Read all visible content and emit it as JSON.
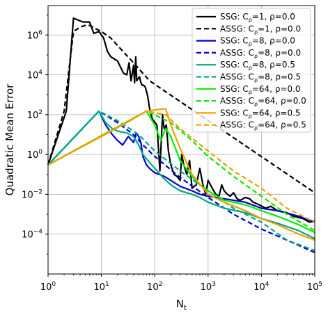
{
  "chart_data": {
    "type": "line",
    "xscale": "log",
    "yscale": "log",
    "xlim": [
      1,
      100000
    ],
    "ylim": [
      1e-06,
      30000000
    ],
    "xlabel": "N",
    "xlabel_sub": "t",
    "ylabel": "Quadratic Mean Error",
    "grid": true,
    "legend_position": "top-right",
    "x_ticks": [
      {
        "base": "10",
        "exp": "0"
      },
      {
        "base": "10",
        "exp": "1"
      },
      {
        "base": "10",
        "exp": "2"
      },
      {
        "base": "10",
        "exp": "3"
      },
      {
        "base": "10",
        "exp": "4"
      },
      {
        "base": "10",
        "exp": "5"
      }
    ],
    "y_ticks": [
      {
        "base": "10",
        "exp": "−4"
      },
      {
        "base": "10",
        "exp": "−2"
      },
      {
        "base": "10",
        "exp": "0"
      },
      {
        "base": "10",
        "exp": "2"
      },
      {
        "base": "10",
        "exp": "4"
      },
      {
        "base": "10",
        "exp": "6"
      }
    ],
    "series": [
      {
        "name": "SSG: C_ρ=1, ρ=0.0",
        "label_prefix": "SSG: C",
        "label_sub": "ρ",
        "label_suffix": "=1, ρ=0.0",
        "color": "#000000",
        "dash": "solid",
        "x": [
          1,
          2.2,
          3,
          4.5,
          6,
          7.2,
          9,
          11,
          13,
          15,
          20,
          26,
          30,
          33,
          36,
          38,
          40,
          42,
          44,
          46,
          48,
          52,
          55,
          58,
          62,
          66,
          70,
          74,
          80,
          90,
          110,
          125,
          140,
          150,
          165,
          180,
          200,
          230,
          260,
          300,
          320,
          350,
          400,
          450,
          500,
          600,
          700,
          800,
          900,
          1000,
          1200,
          1400,
          1600,
          1800,
          2000,
          2300,
          2600,
          3000,
          3500,
          4000,
          5000,
          6000,
          7000,
          9000,
          12000,
          15000,
          20000,
          30000,
          40000,
          60000,
          80000,
          100000
        ],
        "y": [
          0.3,
          150,
          7000000,
          4500000,
          4500000,
          1200000,
          1500000,
          700000,
          150000,
          80000,
          50000,
          12000,
          10000,
          40000,
          5000,
          12000,
          30000,
          4000,
          80000,
          5000,
          6000,
          8000,
          4000,
          3000,
          3000,
          2500,
          1500,
          800,
          200,
          60,
          30,
          0.15,
          100,
          20,
          30,
          1.5,
          0.3,
          0.1,
          0.08,
          0.05,
          1,
          0.3,
          0.1,
          0.5,
          0.02,
          0.03,
          0.2,
          0.03,
          0.01,
          0.05,
          0.02,
          0.01,
          0.008,
          0.03,
          0.015,
          0.01,
          0.008,
          0.012,
          0.006,
          0.005,
          0.007,
          0.006,
          0.004,
          0.003,
          0.002,
          0.0025,
          0.0015,
          0.0012,
          0.0008,
          0.0006,
          0.0004,
          0.00045
        ]
      },
      {
        "name": "ASSG: C_ρ=1, ρ=0.0",
        "label_prefix": "ASSG: C",
        "label_sub": "ρ",
        "label_suffix": "=1, ρ=0.0",
        "color": "#000000",
        "dash": "dashed",
        "x": [
          1,
          2,
          3,
          4,
          5,
          6,
          8,
          10,
          15,
          20,
          40,
          80,
          100000
        ],
        "y": [
          0.3,
          150,
          1500000,
          2500000,
          3000000,
          3000000,
          2000000,
          1500000,
          700000,
          300000,
          40000,
          5000,
          0.012
        ]
      },
      {
        "name": "SSG: C_ρ=8, ρ=0.0",
        "label_prefix": "SSG: C",
        "label_sub": "ρ",
        "label_suffix": "=8, ρ=0.0",
        "color": "#0000d4",
        "dash": "solid",
        "x": [
          1,
          9,
          12,
          16,
          20,
          25,
          32,
          40,
          45,
          50,
          55,
          60,
          70,
          80,
          100,
          150,
          200,
          300,
          500,
          700,
          1000,
          2000,
          5000,
          10000,
          20000,
          50000,
          100000
        ],
        "y": [
          0.3,
          150,
          30,
          10,
          5,
          3,
          8,
          4,
          12,
          8,
          4,
          0.8,
          0.3,
          0.2,
          0.12,
          0.08,
          0.05,
          0.025,
          0.015,
          0.01,
          0.008,
          0.006,
          0.004,
          0.002,
          0.0015,
          0.0008,
          0.0004
        ]
      },
      {
        "name": "ASSG: C_ρ=8, ρ=0.0",
        "label_prefix": "ASSG: C",
        "label_sub": "ρ",
        "label_suffix": "=8, ρ=0.0",
        "color": "#0000d4",
        "dash": "dashed",
        "x": [
          1,
          9,
          20,
          40,
          60,
          100,
          300,
          1000,
          3000,
          10000,
          30000,
          100000
        ],
        "y": [
          0.3,
          150,
          40,
          10,
          3,
          0.8,
          0.07,
          0.007,
          0.001,
          0.00018,
          5e-05,
          1.2e-05
        ]
      },
      {
        "name": "SSG: C_ρ=8, ρ=0.5",
        "label_prefix": "SSG: C",
        "label_sub": "ρ",
        "label_suffix": "=8, ρ=0.5",
        "color": "#00a887",
        "dash": "solid",
        "x": [
          1,
          9,
          12,
          16,
          20,
          30,
          40,
          50,
          60,
          80,
          100,
          150,
          200,
          300,
          500,
          700,
          1000,
          2000,
          5000,
          10000,
          20000,
          50000,
          100000
        ],
        "y": [
          0.3,
          150,
          40,
          20,
          15,
          12,
          8,
          3,
          1,
          0.4,
          0.2,
          0.06,
          0.03,
          0.015,
          0.01,
          0.007,
          0.004,
          0.002,
          0.0012,
          0.0006,
          0.00035,
          0.00015,
          6e-05
        ]
      },
      {
        "name": "ASSG: C_ρ=8, ρ=0.5",
        "label_prefix": "ASSG: C",
        "label_sub": "ρ",
        "label_suffix": "=8, ρ=0.5",
        "color": "#00a887",
        "dash": "dashed",
        "x": [
          1,
          9,
          20,
          50,
          100,
          300,
          1000,
          3000,
          10000,
          30000,
          100000
        ],
        "y": [
          0.3,
          150,
          50,
          10,
          1.5,
          0.15,
          0.015,
          0.002,
          0.0004,
          5e-05,
          1.5e-05
        ]
      },
      {
        "name": "SSG: C_ρ=64, ρ=0.0",
        "label_prefix": "SSG: C",
        "label_sub": "ρ",
        "label_suffix": "=64, ρ=0.0",
        "color": "#00ee00",
        "dash": "solid",
        "x": [
          1,
          70,
          100,
          130,
          160,
          200,
          300,
          500,
          700,
          1000,
          1500,
          2000,
          3000,
          5000,
          10000,
          20000,
          50000,
          100000
        ],
        "y": [
          0.3,
          150,
          30,
          5,
          20,
          8,
          0.5,
          0.08,
          0.03,
          0.015,
          0.008,
          0.005,
          0.004,
          0.003,
          0.0015,
          0.0008,
          0.0003,
          0.00012
        ]
      },
      {
        "name": "ASSG: C_ρ=64, ρ=0.0",
        "label_prefix": "ASSG: C",
        "label_sub": "ρ",
        "label_suffix": "=64, ρ=0.0",
        "color": "#00ee00",
        "dash": "dashed",
        "x": [
          1,
          70,
          200,
          500,
          1000,
          3000,
          10000,
          30000,
          100000
        ],
        "y": [
          0.3,
          150,
          40,
          5,
          0.8,
          0.08,
          0.008,
          0.001,
          0.00015
        ]
      },
      {
        "name": "SSG: C_ρ=64, ρ=0.5",
        "label_prefix": "SSG: C",
        "label_sub": "ρ",
        "label_suffix": "=64, ρ=0.5",
        "color": "#f0a000",
        "dash": "solid",
        "x": [
          1,
          10,
          30,
          70,
          160,
          200,
          300,
          500,
          1000,
          2000,
          5000,
          10000,
          20000,
          50000,
          100000
        ],
        "y": [
          0.3,
          8,
          40,
          150,
          200,
          30,
          2,
          0.1,
          0.01,
          0.004,
          0.0015,
          0.0006,
          0.0003,
          0.0001,
          5e-05
        ]
      },
      {
        "name": "ASSG: C_ρ=64, ρ=0.5",
        "label_prefix": "ASSG: C",
        "label_sub": "ρ",
        "label_suffix": "=64, ρ=0.5",
        "color": "#f0a000",
        "dash": "dashed",
        "x": [
          1,
          70,
          160,
          300,
          1000,
          3000,
          10000,
          30000,
          100000
        ],
        "y": [
          0.3,
          150,
          100,
          20,
          1.5,
          0.15,
          0.02,
          0.002,
          0.0004
        ]
      }
    ]
  }
}
